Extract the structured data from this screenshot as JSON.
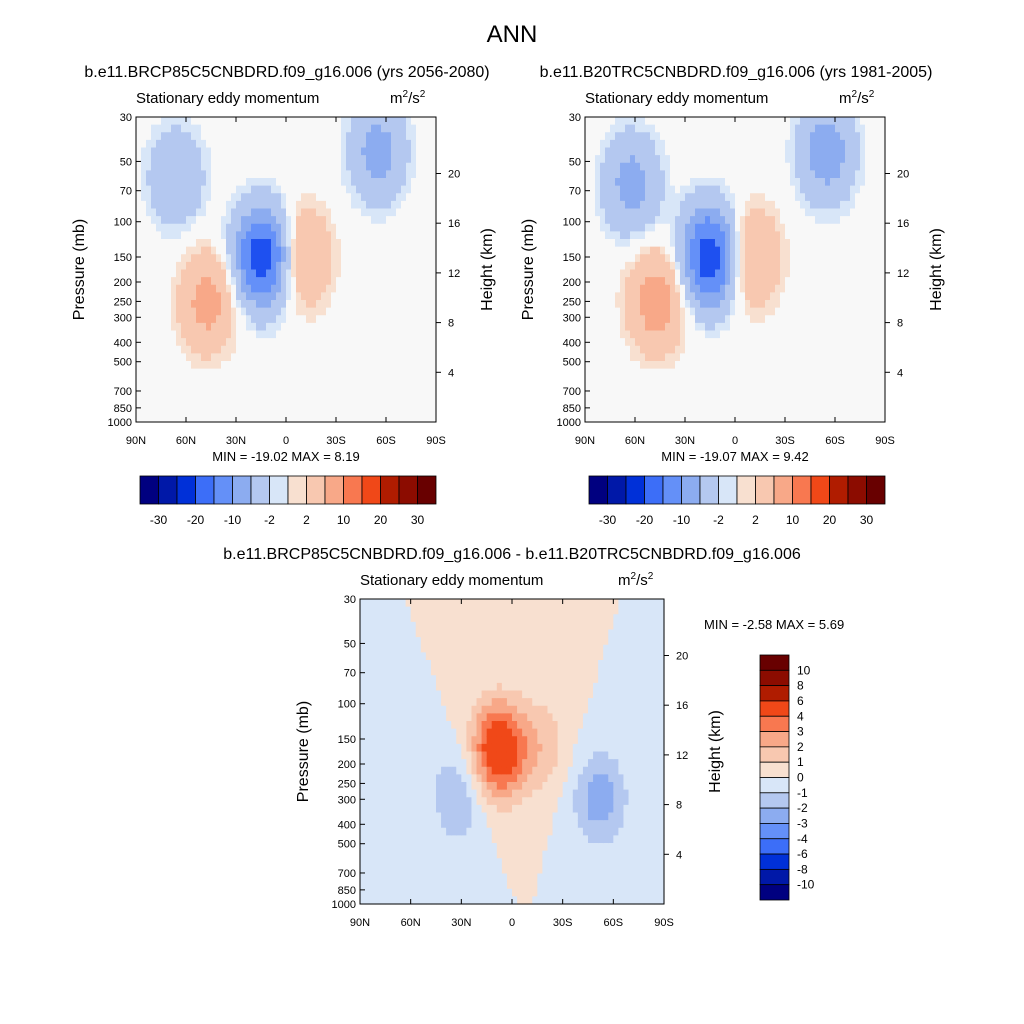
{
  "figure": {
    "title": "ANN",
    "colors": {
      "div": [
        "#000080",
        "#0018a8",
        "#0030d8",
        "#1e50f0",
        "#3c6ef8",
        "#6490f8",
        "#8cacf0",
        "#b4c8f0",
        "#d8e6f8",
        "#f8f8f8",
        "#f8e0d0",
        "#f8c8b0",
        "#f8a888",
        "#f87850",
        "#f04818",
        "#d02808",
        "#b01c00",
        "#8c0c00",
        "#680000"
      ]
    },
    "panels": [
      {
        "id": "p1",
        "case_title": "b.e11.BRCP85C5CNBDRD.f09_g16.006 (yrs 2056-2080)",
        "left_label": "Stationary eddy momentum",
        "units_base": "m",
        "units_exp1": "2",
        "units_mid": "/s",
        "units_exp2": "2",
        "minmax": "MIN = -19.02  MAX =   8.19"
      },
      {
        "id": "p2",
        "case_title": "b.e11.B20TRC5CNBDRD.f09_g16.006 (yrs 1981-2005)",
        "left_label": "Stationary eddy momentum",
        "units_base": "m",
        "units_exp1": "2",
        "units_mid": "/s",
        "units_exp2": "2",
        "minmax": "MIN = -19.07  MAX =   9.42"
      },
      {
        "id": "p3",
        "case_title": "b.e11.BRCP85C5CNBDRD.f09_g16.006 - b.e11.B20TRC5CNBDRD.f09_g16.006",
        "left_label": "Stationary eddy momentum",
        "units_base": "m",
        "units_exp1": "2",
        "units_mid": "/s",
        "units_exp2": "2",
        "minmax": "MIN =  -2.58  MAX =   5.69"
      }
    ],
    "horiz_colorbar_labels": [
      "-30",
      "-20",
      "-10",
      "-2",
      "2",
      "10",
      "20",
      "30"
    ],
    "vert_colorbar_labels": [
      "10",
      "8",
      "6",
      "4",
      "3",
      "2",
      "1",
      "0",
      "-1",
      "-2",
      "-3",
      "-4",
      "-6",
      "-8",
      "-10"
    ]
  },
  "chart_data": [
    {
      "type": "heatmap",
      "title": "Stationary eddy momentum",
      "subtitle": "b.e11.BRCP85C5CNBDRD.f09_g16.006 (yrs 2056-2080)",
      "units": "m2/s2",
      "xlabel": "",
      "ylabel": "Pressure (mb)",
      "ylabel_right": "Height (km)",
      "x_ticks": [
        "90N",
        "60N",
        "30N",
        "0",
        "30S",
        "60S",
        "90S"
      ],
      "x_values": [
        90,
        60,
        30,
        0,
        -30,
        -60,
        -90
      ],
      "y_ticks": [
        30,
        50,
        70,
        100,
        150,
        200,
        250,
        300,
        400,
        500,
        700,
        850,
        1000
      ],
      "y_right_ticks": [
        4,
        8,
        12,
        16,
        20
      ],
      "ylim": [
        1000,
        30
      ],
      "min": -19.02,
      "max": 8.19,
      "levels": [
        -30,
        -25,
        -20,
        -15,
        -10,
        -6,
        -2,
        -1,
        1,
        2,
        6,
        10,
        15,
        20,
        25,
        30
      ],
      "features": [
        {
          "lat": 47,
          "p": 250,
          "value": 8
        },
        {
          "lat": -10,
          "p": 150,
          "value": 7
        },
        {
          "lat": 14,
          "p": 150,
          "value": -19
        },
        {
          "lat": -55,
          "p": 45,
          "value": -8
        },
        {
          "lat": 66,
          "p": 60,
          "value": -6
        }
      ]
    },
    {
      "type": "heatmap",
      "title": "Stationary eddy momentum",
      "subtitle": "b.e11.B20TRC5CNBDRD.f09_g16.006 (yrs 1981-2005)",
      "units": "m2/s2",
      "xlabel": "",
      "ylabel": "Pressure (mb)",
      "ylabel_right": "Height (km)",
      "x_ticks": [
        "90N",
        "60N",
        "30N",
        "0",
        "30S",
        "60S",
        "90S"
      ],
      "x_values": [
        90,
        60,
        30,
        0,
        -30,
        -60,
        -90
      ],
      "y_ticks": [
        30,
        50,
        70,
        100,
        150,
        200,
        250,
        300,
        400,
        500,
        700,
        850,
        1000
      ],
      "y_right_ticks": [
        4,
        8,
        12,
        16,
        20
      ],
      "ylim": [
        1000,
        30
      ],
      "min": -19.07,
      "max": 9.42,
      "levels": [
        -30,
        -25,
        -20,
        -15,
        -10,
        -6,
        -2,
        -1,
        1,
        2,
        6,
        10,
        15,
        20,
        25,
        30
      ],
      "features": [
        {
          "lat": 47,
          "p": 250,
          "value": 9
        },
        {
          "lat": -10,
          "p": 150,
          "value": 7
        },
        {
          "lat": 15,
          "p": 150,
          "value": -19
        },
        {
          "lat": -55,
          "p": 45,
          "value": -9
        },
        {
          "lat": 62,
          "p": 65,
          "value": -8
        }
      ]
    },
    {
      "type": "heatmap",
      "title": "Stationary eddy momentum",
      "subtitle": "b.e11.BRCP85C5CNBDRD.f09_g16.006 - b.e11.B20TRC5CNBDRD.f09_g16.006",
      "units": "m2/s2",
      "xlabel": "",
      "ylabel": "Pressure (mb)",
      "ylabel_right": "Height (km)",
      "x_ticks": [
        "90N",
        "60N",
        "30N",
        "0",
        "30S",
        "60S",
        "90S"
      ],
      "x_values": [
        90,
        60,
        30,
        0,
        -30,
        -60,
        -90
      ],
      "y_ticks": [
        30,
        50,
        70,
        100,
        150,
        200,
        250,
        300,
        400,
        500,
        700,
        850,
        1000
      ],
      "y_right_ticks": [
        4,
        8,
        12,
        16,
        20
      ],
      "ylim": [
        1000,
        30
      ],
      "min": -2.58,
      "max": 5.69,
      "levels": [
        -10,
        -8,
        -6,
        -4,
        -3,
        -2,
        -1,
        0,
        1,
        2,
        3,
        4,
        6,
        8,
        10
      ],
      "features": [
        {
          "lat": 8,
          "p": 170,
          "value": 5.7
        },
        {
          "lat": -18,
          "p": 160,
          "value": 1.5
        },
        {
          "lat": -52,
          "p": 300,
          "value": -2.6
        },
        {
          "lat": 32,
          "p": 290,
          "value": -2
        }
      ]
    }
  ]
}
